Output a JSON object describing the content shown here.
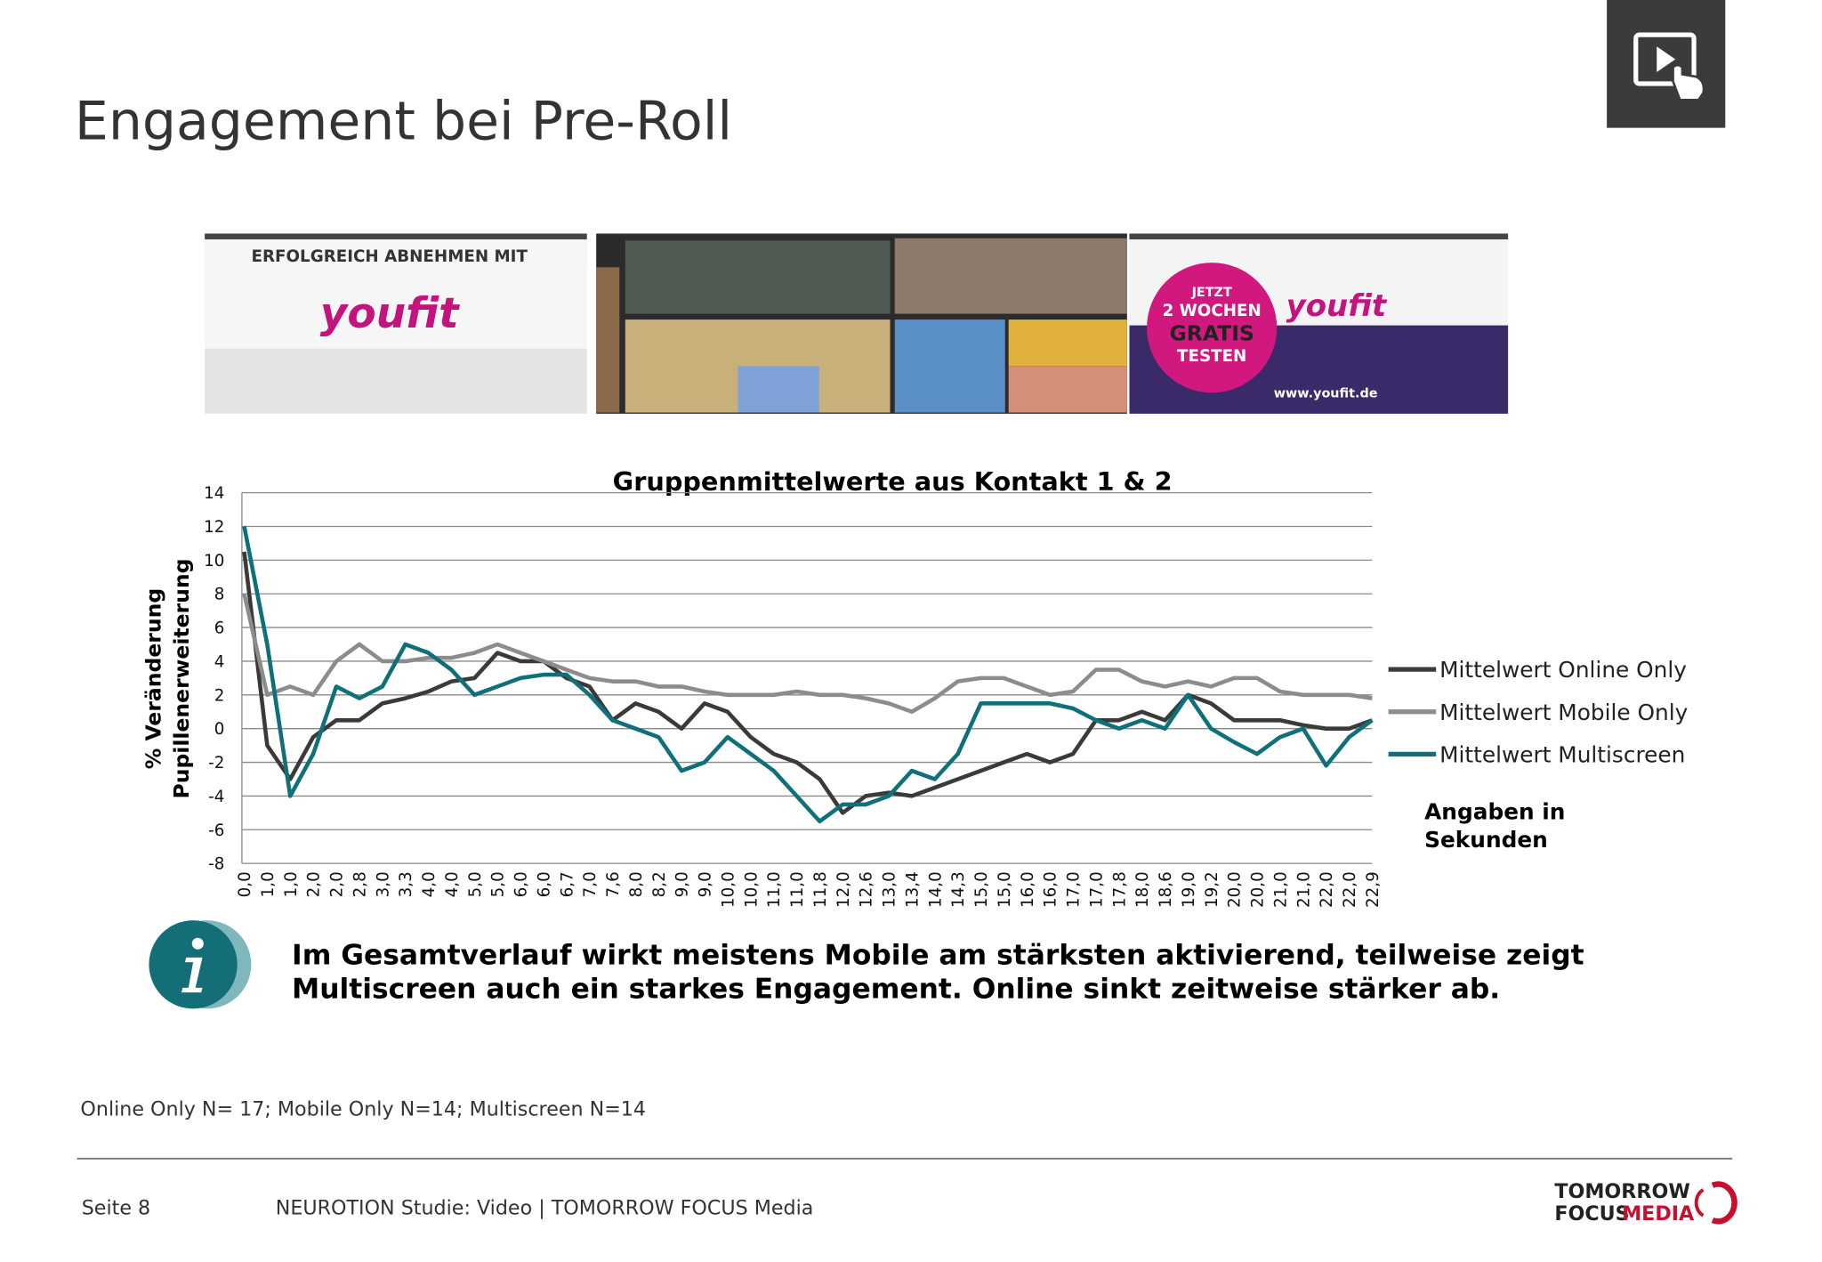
{
  "header": {
    "title": "Engagement bei Pre-Roll"
  },
  "ad_strip": {
    "headline": "ERFOLGREICH ABNEHMEN MIT",
    "brand": "youfit",
    "badge": [
      "JETZT",
      "2 WOCHEN",
      "GRATIS",
      "TESTEN"
    ],
    "url": "www.youfit.de"
  },
  "chart_data": {
    "type": "line",
    "title": "Gruppenmittelwerte aus Kontakt 1 & 2",
    "y_label": [
      "% Veränderung",
      "Pupillenerweiterung"
    ],
    "categories": [
      "0,0",
      "1,0",
      "1,0",
      "2,0",
      "2,0",
      "2,8",
      "3,0",
      "3,3",
      "4,0",
      "4,0",
      "5,0",
      "5,0",
      "6,0",
      "6,0",
      "6,7",
      "7,0",
      "7,6",
      "8,0",
      "8,2",
      "9,0",
      "9,0",
      "10,0",
      "10,0",
      "11,0",
      "11,0",
      "11,8",
      "12,0",
      "12,6",
      "13,0",
      "13,4",
      "14,0",
      "14,3",
      "15,0",
      "15,0",
      "16,0",
      "16,0",
      "17,0",
      "17,0",
      "17,8",
      "18,0",
      "18,6",
      "19,0",
      "19,2",
      "20,0",
      "20,0",
      "21,0",
      "21,0",
      "22,0",
      "22,0",
      "22,9"
    ],
    "series": [
      {
        "name": "Mittelwert Online Only",
        "color": "#3a3a3a",
        "values": [
          10.5,
          -1,
          -3,
          -0.5,
          0.5,
          0.5,
          1.5,
          1.8,
          2.2,
          2.8,
          3,
          4.5,
          4,
          4,
          3,
          2.5,
          0.5,
          1.5,
          1,
          0,
          1.5,
          1,
          -0.5,
          -1.5,
          -2,
          -3,
          -5,
          -4,
          -3.8,
          -4,
          -3.5,
          -3,
          -2.5,
          -2,
          -1.5,
          -2,
          -1.5,
          0.5,
          0.5,
          1,
          0.5,
          2,
          1.5,
          0.5,
          0.5,
          0.5,
          0.2,
          0,
          0,
          0.5
        ]
      },
      {
        "name": "Mittelwert Mobile Only",
        "color": "#8c8c8c",
        "values": [
          8,
          2,
          2.5,
          2,
          4,
          5,
          4,
          4,
          4.2,
          4.2,
          4.5,
          5,
          4.5,
          4,
          3.5,
          3,
          2.8,
          2.8,
          2.5,
          2.5,
          2.2,
          2,
          2,
          2,
          2.2,
          2,
          2,
          1.8,
          1.5,
          1,
          1.8,
          2.8,
          3,
          3,
          2.5,
          2,
          2.2,
          3.5,
          3.5,
          2.8,
          2.5,
          2.8,
          2.5,
          3,
          3,
          2.2,
          2,
          2,
          2,
          1.8
        ]
      },
      {
        "name": "Mittelwert Multiscreen",
        "color": "#0f6f7a",
        "values": [
          12,
          5,
          -4,
          -1.5,
          2.5,
          1.8,
          2.5,
          5,
          4.5,
          3.5,
          2,
          2.5,
          3,
          3.2,
          3.2,
          2,
          0.5,
          0,
          -0.5,
          -2.5,
          -2,
          -0.5,
          -1.5,
          -2.5,
          -4,
          -5.5,
          -4.5,
          -4.5,
          -4,
          -2.5,
          -3,
          -1.5,
          1.5,
          1.5,
          1.5,
          1.5,
          1.2,
          0.5,
          0,
          0.5,
          0,
          2,
          0,
          -0.8,
          -1.5,
          -0.5,
          0,
          -2.2,
          -0.5,
          0.5
        ]
      }
    ],
    "ylim": [
      -8,
      14
    ],
    "yticks": [
      -8,
      -6,
      -4,
      -2,
      0,
      2,
      4,
      6,
      8,
      10,
      12,
      14
    ],
    "grid": true,
    "legend": "right",
    "annotation": [
      "Angaben in",
      "Sekunden"
    ]
  },
  "info": {
    "lines": [
      "Im Gesamtverlauf wirkt meistens Mobile am stärksten aktivierend, teilweise zeigt",
      "Multiscreen auch ein starkes Engagement. Online sinkt zeitweise stärker ab."
    ]
  },
  "footnote": "Online Only N= 17; Mobile Only N=14; Multiscreen N=14",
  "footer": {
    "page": "Seite 8",
    "source": "NEUROTION Studie: Video | TOMORROW FOCUS Media"
  },
  "logo": {
    "line1": "TOMORROW",
    "line2a": "FOCUS",
    "line2b": "MEDIA"
  }
}
